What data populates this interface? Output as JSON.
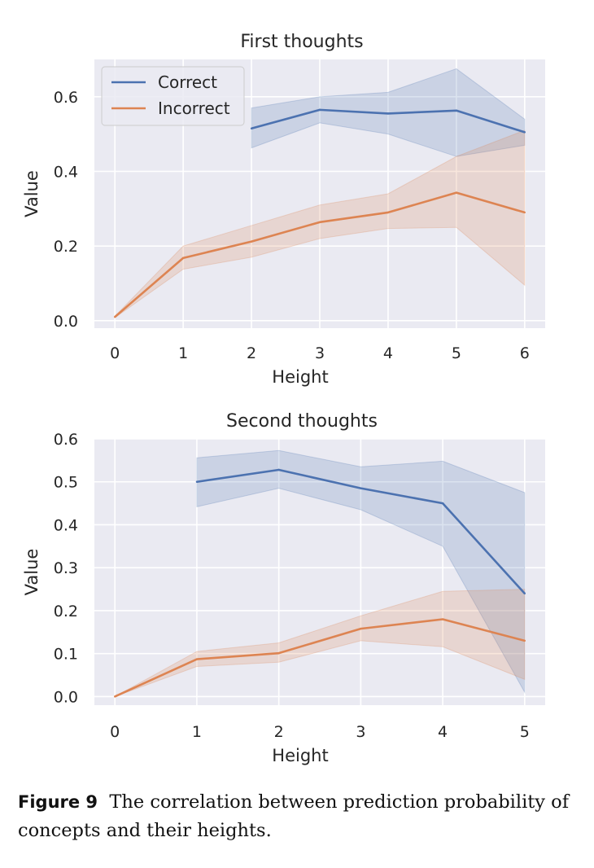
{
  "chart_data": [
    {
      "type": "line",
      "title": "First thoughts",
      "xlabel": "Height",
      "ylabel": "Value",
      "xlim": [
        -0.3,
        6.3
      ],
      "ylim": [
        -0.02,
        0.7
      ],
      "x_ticks": [
        0,
        1,
        2,
        3,
        4,
        5,
        6
      ],
      "x_tick_labels": [
        "0",
        "1",
        "2",
        "3",
        "4",
        "5",
        "6"
      ],
      "y_ticks": [
        0.0,
        0.2,
        0.4,
        0.6
      ],
      "y_tick_labels": [
        "0.0",
        "0.2",
        "0.4",
        "0.6"
      ],
      "grid": true,
      "legend": "top-left",
      "legend_entries": [
        "Correct",
        "Incorrect"
      ],
      "series": [
        {
          "name": "Correct",
          "color": "#4c72b0",
          "x": [
            2,
            3,
            4,
            5,
            6
          ],
          "values": [
            0.515,
            0.565,
            0.555,
            0.563,
            0.505
          ],
          "lower": [
            0.463,
            0.53,
            0.5,
            0.44,
            0.47
          ],
          "upper": [
            0.57,
            0.6,
            0.612,
            0.675,
            0.54
          ]
        },
        {
          "name": "Incorrect",
          "color": "#dd8452",
          "x": [
            0,
            1,
            2,
            3,
            4,
            5,
            6
          ],
          "values": [
            0.01,
            0.168,
            0.212,
            0.264,
            0.29,
            0.343,
            0.29
          ],
          "lower": [
            0.008,
            0.138,
            0.17,
            0.22,
            0.247,
            0.25,
            0.095
          ],
          "upper": [
            0.012,
            0.2,
            0.255,
            0.31,
            0.34,
            0.44,
            0.51
          ]
        }
      ]
    },
    {
      "type": "line",
      "title": "Second thoughts",
      "xlabel": "Height",
      "ylabel": "Value",
      "xlim": [
        -0.25,
        5.25
      ],
      "ylim": [
        -0.02,
        0.6
      ],
      "x_ticks": [
        0,
        1,
        2,
        3,
        4,
        5
      ],
      "x_tick_labels": [
        "0",
        "1",
        "2",
        "3",
        "4",
        "5"
      ],
      "y_ticks": [
        0.0,
        0.1,
        0.2,
        0.3,
        0.4,
        0.5,
        0.6
      ],
      "y_tick_labels": [
        "0.0",
        "0.1",
        "0.2",
        "0.3",
        "0.4",
        "0.5",
        "0.6"
      ],
      "grid": true,
      "legend": "none",
      "series": [
        {
          "name": "Correct",
          "color": "#4c72b0",
          "x": [
            1,
            2,
            3,
            4,
            5
          ],
          "values": [
            0.5,
            0.528,
            0.485,
            0.45,
            0.24
          ],
          "lower": [
            0.442,
            0.485,
            0.435,
            0.35,
            0.01
          ],
          "upper": [
            0.556,
            0.573,
            0.535,
            0.548,
            0.475
          ]
        },
        {
          "name": "Incorrect",
          "color": "#dd8452",
          "x": [
            0,
            1,
            2,
            3,
            4,
            5
          ],
          "values": [
            0.0,
            0.087,
            0.101,
            0.158,
            0.18,
            0.13
          ],
          "lower": [
            0.0,
            0.07,
            0.08,
            0.13,
            0.116,
            0.04
          ],
          "upper": [
            0.0,
            0.105,
            0.125,
            0.188,
            0.245,
            0.25
          ]
        }
      ]
    }
  ],
  "caption": {
    "label": "Figure 9",
    "text": "The correlation between prediction probability of concepts and their heights."
  }
}
